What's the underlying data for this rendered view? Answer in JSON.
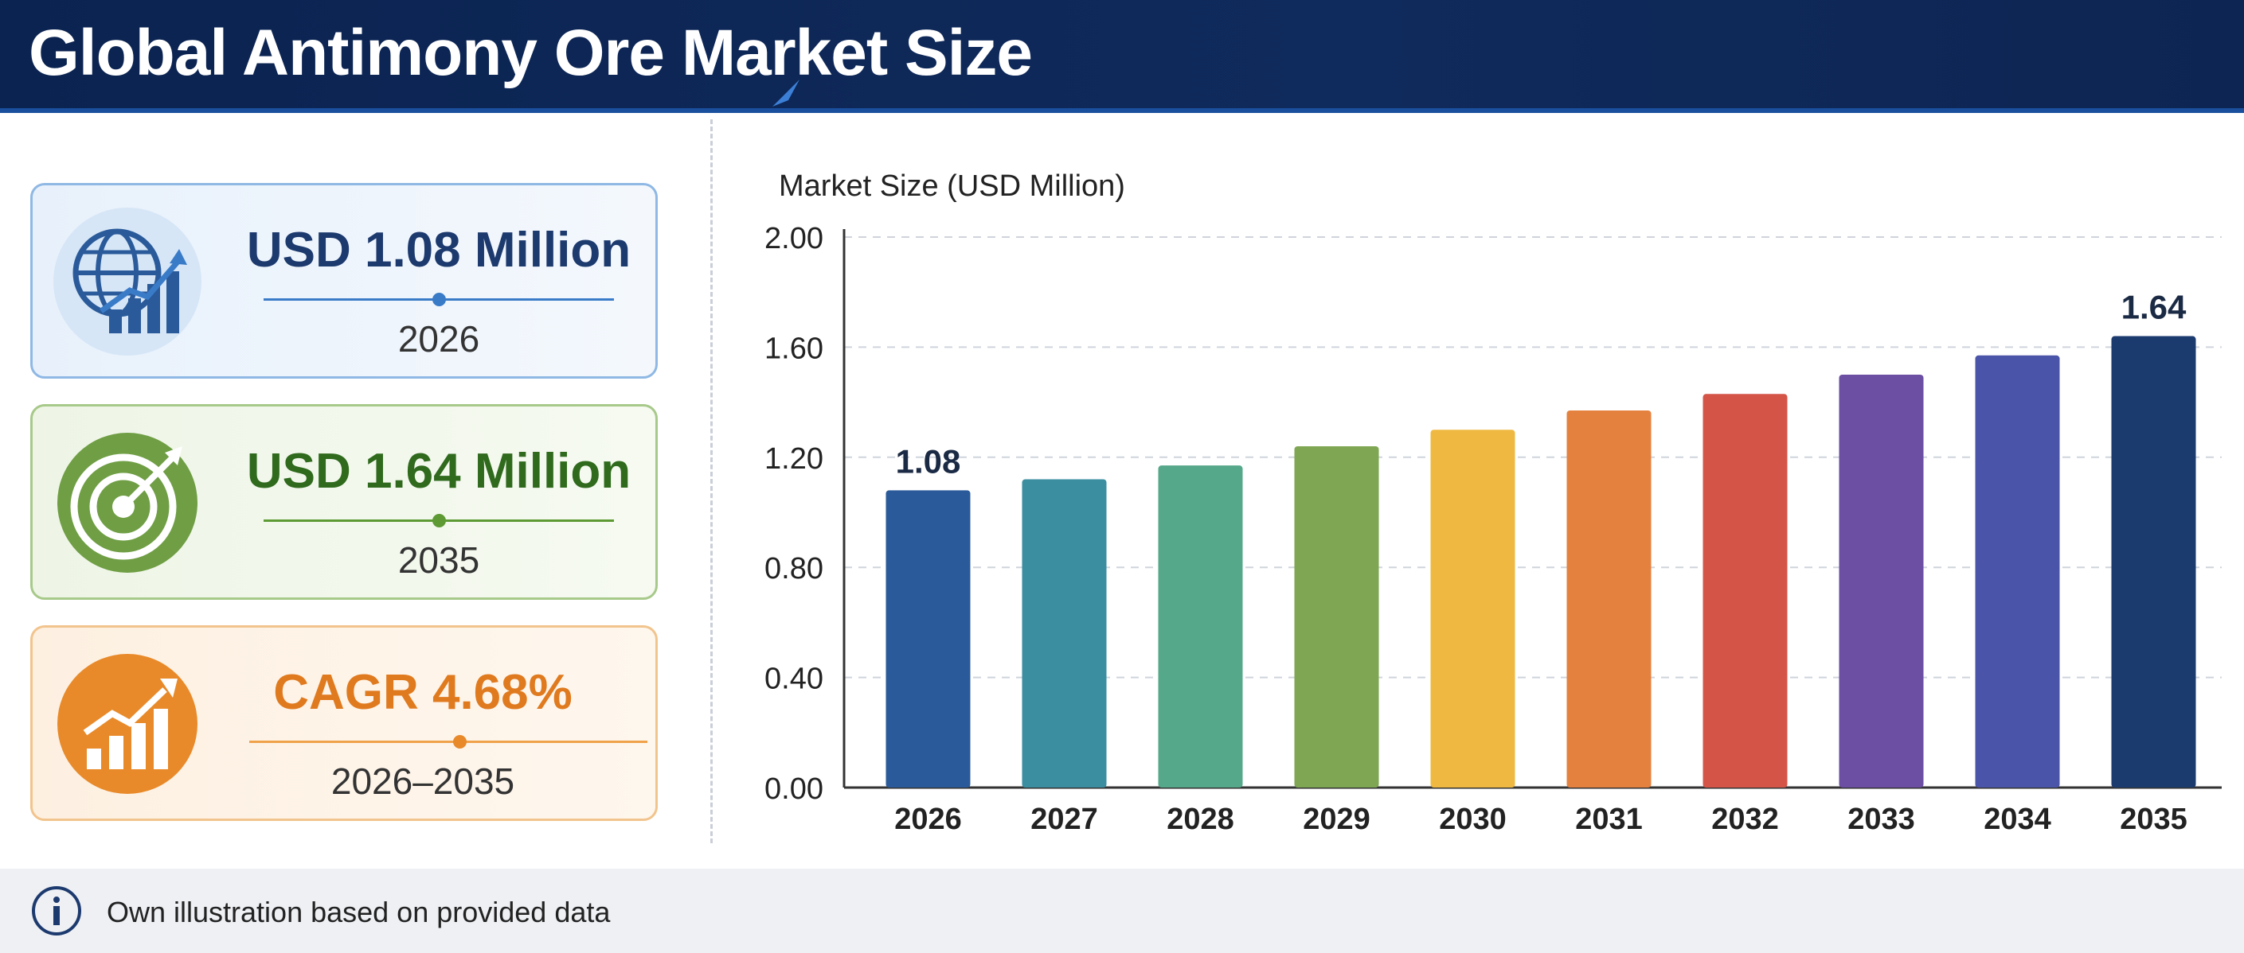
{
  "header": {
    "title": "Global Antimony Ore Market Size"
  },
  "cards": [
    {
      "value": "USD 1.08 Million",
      "label": "2026",
      "icon": "globe-growth-icon",
      "color": "#1d3a6e"
    },
    {
      "value": "USD 1.64 Million",
      "label": "2035",
      "icon": "target-icon",
      "color": "#2f6a1d"
    },
    {
      "value": "CAGR 4.68%",
      "label": "2026–2035",
      "icon": "growth-chart-icon",
      "color": "#e07a1f"
    }
  ],
  "footer": {
    "text": "Own illustration based on provided data",
    "icon": "info-icon"
  },
  "chart_data": {
    "type": "bar",
    "ylabel": "Market Size (USD Million)",
    "categories": [
      "2026",
      "2027",
      "2028",
      "2029",
      "2030",
      "2031",
      "2032",
      "2033",
      "2034",
      "2035"
    ],
    "values": [
      1.08,
      1.12,
      1.17,
      1.24,
      1.3,
      1.37,
      1.43,
      1.5,
      1.57,
      1.64
    ],
    "ylim": [
      0,
      2.0
    ],
    "yticks": [
      "0.00",
      "0.40",
      "0.80",
      "1.20",
      "1.60",
      "2.00"
    ],
    "data_labels": [
      {
        "index": 0,
        "text": "1.08"
      },
      {
        "index": 9,
        "text": "1.64"
      }
    ],
    "colors": [
      "#2a5a9a",
      "#3b8ea0",
      "#55a88a",
      "#7fa652",
      "#efb941",
      "#e5813f",
      "#d45448",
      "#6c4ea3",
      "#4a54a8",
      "#1b3a6e"
    ],
    "grid": true,
    "legend": "none"
  }
}
